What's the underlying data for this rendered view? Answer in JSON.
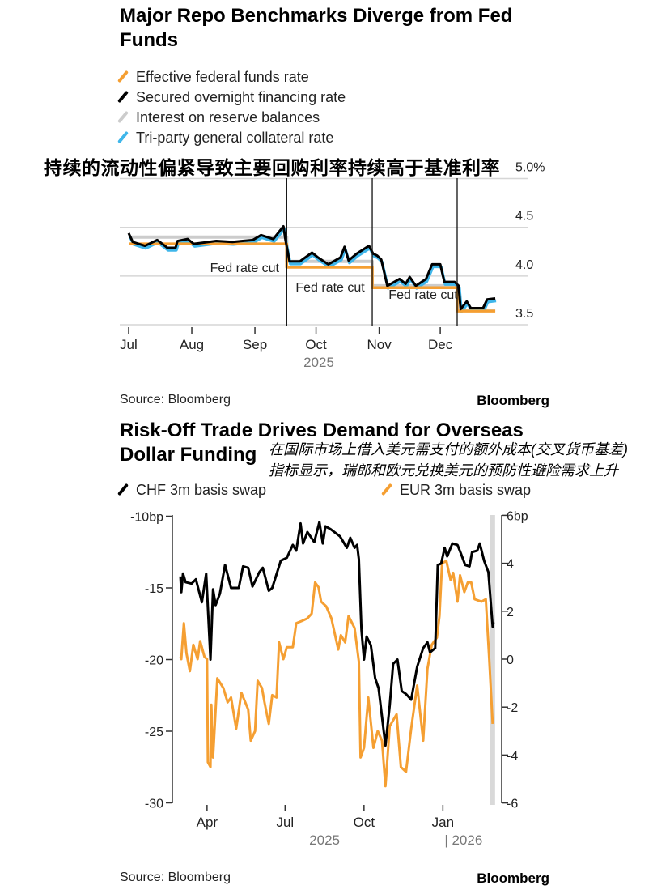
{
  "chart_data": [
    {
      "type": "line",
      "title": "Major Repo Benchmarks Diverge from Fed Funds",
      "overlay_caption": "持续的流动性偏紧导致主要回购利率持续高于基准利率",
      "x_unit": "days since 2025-07-01",
      "x_ticks": [
        {
          "label": "Jul",
          "x": 0
        },
        {
          "label": "Aug",
          "x": 31
        },
        {
          "label": "Sep",
          "x": 62
        },
        {
          "label": "Oct",
          "x": 92
        },
        {
          "label": "Nov",
          "x": 123
        },
        {
          "label": "Dec",
          "x": 153
        }
      ],
      "x_year_label": "2025",
      "ylim": [
        3.4,
        5.0
      ],
      "y_ticks": [
        {
          "label": "5.0%",
          "y": 5.0
        },
        {
          "label": "4.5",
          "y": 4.5
        },
        {
          "label": "4.0",
          "y": 4.0
        },
        {
          "label": "3.5",
          "y": 3.5
        }
      ],
      "annotations": [
        {
          "label": "Fed rate cut",
          "x": 77.6
        },
        {
          "label": "Fed rate cut",
          "x": 119.6
        },
        {
          "label": "Fed rate cut",
          "x": 161.3
        }
      ],
      "series": [
        {
          "name": "Effective federal funds rate",
          "color": "#f59f32",
          "steps": [
            [
              0,
              4.33
            ],
            [
              77.6,
              4.09
            ],
            [
              119.6,
              3.88
            ],
            [
              161.3,
              3.64
            ],
            [
              180,
              3.64
            ]
          ]
        },
        {
          "name": "Secured overnight financing rate",
          "color": "#000000",
          "points": [
            [
              0,
              4.44
            ],
            [
              2,
              4.35
            ],
            [
              8,
              4.31
            ],
            [
              14,
              4.37
            ],
            [
              19,
              4.29
            ],
            [
              23,
              4.29
            ],
            [
              24,
              4.36
            ],
            [
              29,
              4.38
            ],
            [
              32,
              4.33
            ],
            [
              43,
              4.36
            ],
            [
              51,
              4.35
            ],
            [
              56,
              4.36
            ],
            [
              61,
              4.37
            ],
            [
              65,
              4.42
            ],
            [
              71,
              4.38
            ],
            [
              76,
              4.51
            ],
            [
              77,
              4.37
            ],
            [
              79,
              4.15
            ],
            [
              84,
              4.15
            ],
            [
              90,
              4.24
            ],
            [
              93,
              4.19
            ],
            [
              98,
              4.12
            ],
            [
              104,
              4.19
            ],
            [
              106,
              4.3
            ],
            [
              108,
              4.16
            ],
            [
              112,
              4.23
            ],
            [
              118,
              4.31
            ],
            [
              120,
              4.23
            ],
            [
              122,
              4.21
            ],
            [
              124,
              4.17
            ],
            [
              127,
              3.9
            ],
            [
              133,
              3.97
            ],
            [
              136,
              3.92
            ],
            [
              138,
              3.99
            ],
            [
              141,
              3.9
            ],
            [
              146,
              3.97
            ],
            [
              149,
              4.12
            ],
            [
              153,
              4.12
            ],
            [
              155,
              3.94
            ],
            [
              160,
              3.94
            ],
            [
              162,
              3.9
            ],
            [
              163,
              3.66
            ],
            [
              166,
              3.74
            ],
            [
              168,
              3.67
            ],
            [
              174,
              3.67
            ],
            [
              176,
              3.76
            ],
            [
              180,
              3.77
            ]
          ]
        },
        {
          "name": "Interest on reserve balances",
          "color": "#cccccc",
          "steps": [
            [
              0,
              4.4
            ],
            [
              77.6,
              4.15
            ],
            [
              119.6,
              3.9
            ],
            [
              161.3,
              3.65
            ],
            [
              180,
              3.65
            ]
          ]
        },
        {
          "name": "Tri-party general collateral rate",
          "color": "#3fb6ea",
          "offset_from_sofr": -0.025
        }
      ],
      "source": "Source: Bloomberg",
      "brand": "Bloomberg"
    },
    {
      "type": "line",
      "title": "Risk-Off Trade Drives Demand for Overseas Dollar Funding",
      "subtitle_lines": [
        "在国际市场上借入美元需支付的额外成本(交叉货币基差)",
        "指标显示，瑞郎和欧元兑换美元的预防性避险需求上升"
      ],
      "x_unit": "days since 2025-03-01",
      "x_ticks": [
        {
          "label": "Apr",
          "x": 31
        },
        {
          "label": "Jul",
          "x": 122
        },
        {
          "label": "Oct",
          "x": 214
        },
        {
          "label": "Jan",
          "x": 306
        }
      ],
      "x_year_labels": [
        {
          "label": "2025",
          "x": 168
        },
        {
          "label": "| 2026",
          "x": 330
        }
      ],
      "left_axis": {
        "ylim": [
          -30,
          -10
        ],
        "inverted": true,
        "ticks": [
          {
            "label": "-10bp",
            "y": -10
          },
          {
            "label": "-15",
            "y": -15
          },
          {
            "label": "-20",
            "y": -20
          },
          {
            "label": "-25",
            "y": -25
          },
          {
            "label": "-30",
            "y": -30
          }
        ]
      },
      "right_axis": {
        "ylim": [
          -6,
          6
        ],
        "ticks": [
          {
            "label": "6bp",
            "y": 6
          },
          {
            "label": "4",
            "y": 4
          },
          {
            "label": "2",
            "y": 2
          },
          {
            "label": "0",
            "y": 0
          },
          {
            "label": "-2",
            "y": -2
          },
          {
            "label": "-4",
            "y": -4
          },
          {
            "label": "-6",
            "y": -6
          }
        ]
      },
      "highlight_band_x": [
        359,
        364
      ],
      "series": [
        {
          "name": "CHF 3m basis swap",
          "axis": "left",
          "color": "#000000",
          "points": [
            [
              0,
              -14.2
            ],
            [
              1,
              -15.3
            ],
            [
              3,
              -14.0
            ],
            [
              6,
              -14.6
            ],
            [
              13,
              -14.7
            ],
            [
              18,
              -14.4
            ],
            [
              25,
              -16.0
            ],
            [
              30,
              -14.0
            ],
            [
              35,
              -20.0
            ],
            [
              38,
              -15.1
            ],
            [
              41,
              -16.2
            ],
            [
              46,
              -15.4
            ],
            [
              52,
              -13.4
            ],
            [
              59,
              -15.0
            ],
            [
              68,
              -15.0
            ],
            [
              73,
              -13.5
            ],
            [
              79,
              -13.6
            ],
            [
              84,
              -14.9
            ],
            [
              92,
              -13.9
            ],
            [
              96,
              -13.6
            ],
            [
              103,
              -15.2
            ],
            [
              107,
              -15.0
            ],
            [
              117,
              -13.1
            ],
            [
              124,
              -12.9
            ],
            [
              131,
              -12.0
            ],
            [
              135,
              -12.4
            ],
            [
              140,
              -10.5
            ],
            [
              143,
              -11.9
            ],
            [
              148,
              -11.1
            ],
            [
              156,
              -11.8
            ],
            [
              162,
              -10.4
            ],
            [
              166,
              -11.9
            ],
            [
              169,
              -10.7
            ],
            [
              175,
              -10.9
            ],
            [
              186,
              -11.4
            ],
            [
              194,
              -12.2
            ],
            [
              198,
              -11.5
            ],
            [
              203,
              -12.2
            ],
            [
              206,
              -12.0
            ],
            [
              208,
              -13.0
            ],
            [
              211,
              -17.9
            ],
            [
              214,
              -20.0
            ],
            [
              217,
              -18.4
            ],
            [
              222,
              -19.0
            ],
            [
              227,
              -21.3
            ],
            [
              231,
              -22.0
            ],
            [
              239,
              -26.0
            ],
            [
              244,
              -23.2
            ],
            [
              248,
              -20.3
            ],
            [
              253,
              -20.0
            ],
            [
              258,
              -22.2
            ],
            [
              263,
              -22.4
            ],
            [
              269,
              -22.8
            ],
            [
              276,
              -20.5
            ],
            [
              283,
              -19.2
            ],
            [
              288,
              -18.8
            ],
            [
              291,
              -19.5
            ],
            [
              297,
              -19.2
            ],
            [
              300,
              -13.4
            ],
            [
              304,
              -13.3
            ],
            [
              308,
              -12.2
            ],
            [
              311,
              -12.8
            ],
            [
              317,
              -11.9
            ],
            [
              323,
              -12.0
            ],
            [
              327,
              -12.6
            ],
            [
              332,
              -13.4
            ],
            [
              337,
              -13.5
            ],
            [
              340,
              -12.5
            ],
            [
              346,
              -12.4
            ],
            [
              349,
              -11.9
            ],
            [
              354,
              -13.1
            ],
            [
              359,
              -13.9
            ],
            [
              364,
              -17.7
            ],
            [
              365,
              -17.4
            ]
          ]
        },
        {
          "name": "EUR 3m basis swap",
          "axis": "right",
          "color": "#f59f32",
          "points": [
            [
              0,
              0.1
            ],
            [
              1,
              0
            ],
            [
              4,
              1.5
            ],
            [
              7,
              0.25
            ],
            [
              11,
              -0.5
            ],
            [
              15,
              0.6
            ],
            [
              20,
              0
            ],
            [
              23,
              0.75
            ],
            [
              28,
              0.1
            ],
            [
              31,
              0
            ],
            [
              32,
              -4.3
            ],
            [
              35,
              -4.5
            ],
            [
              36,
              -1.9
            ],
            [
              38,
              -4.1
            ],
            [
              43,
              -0.8
            ],
            [
              50,
              -1.2
            ],
            [
              55,
              -1.8
            ],
            [
              59,
              -1.6
            ],
            [
              65,
              -2.9
            ],
            [
              71,
              -1.4
            ],
            [
              79,
              -2.1
            ],
            [
              82,
              -3.4
            ],
            [
              87,
              -3.0
            ],
            [
              90,
              -0.9
            ],
            [
              95,
              -1.2
            ],
            [
              98,
              -1.8
            ],
            [
              103,
              -2.7
            ],
            [
              107,
              -1.5
            ],
            [
              112,
              -1.6
            ],
            [
              115,
              0.7
            ],
            [
              120,
              0
            ],
            [
              124,
              0.5
            ],
            [
              131,
              0.5
            ],
            [
              135,
              1.5
            ],
            [
              142,
              1.6
            ],
            [
              148,
              1.7
            ],
            [
              153,
              1.9
            ],
            [
              157,
              3.2
            ],
            [
              161,
              3.0
            ],
            [
              164,
              2.4
            ],
            [
              170,
              2.2
            ],
            [
              176,
              1.7
            ],
            [
              184,
              0.4
            ],
            [
              187,
              1.0
            ],
            [
              192,
              0.7
            ],
            [
              196,
              1.8
            ],
            [
              203,
              1.3
            ],
            [
              208,
              -0.1
            ],
            [
              210,
              -4.1
            ],
            [
              214,
              -3.7
            ],
            [
              219,
              -1.6
            ],
            [
              225,
              -3.7
            ],
            [
              230,
              -3.0
            ],
            [
              235,
              -3.4
            ],
            [
              239,
              -5.3
            ],
            [
              244,
              -2.8
            ],
            [
              252,
              -2.3
            ],
            [
              257,
              -4.5
            ],
            [
              263,
              -4.7
            ],
            [
              269,
              -2.9
            ],
            [
              276,
              -1.1
            ],
            [
              283,
              -3.4
            ],
            [
              288,
              -0.4
            ],
            [
              293,
              0.6
            ],
            [
              299,
              0.9
            ],
            [
              302,
              1.8
            ],
            [
              305,
              4.0
            ],
            [
              310,
              4.1
            ],
            [
              315,
              3.3
            ],
            [
              318,
              3.6
            ],
            [
              323,
              2.4
            ],
            [
              326,
              3.5
            ],
            [
              331,
              2.8
            ],
            [
              335,
              3.2
            ],
            [
              339,
              3.2
            ],
            [
              343,
              2.5
            ],
            [
              351,
              2.4
            ],
            [
              356,
              2.5
            ],
            [
              360,
              0
            ],
            [
              364,
              -2.7
            ]
          ]
        }
      ],
      "source": "Source: Bloomberg",
      "brand": "Bloomberg"
    }
  ]
}
